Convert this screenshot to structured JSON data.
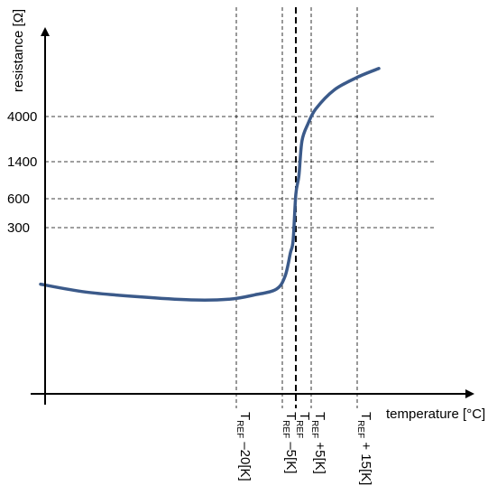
{
  "chart_data": {
    "type": "line",
    "title": "",
    "xlabel": "temperature [°C]",
    "ylabel": "resistance [Ω]",
    "y_ticks": [
      {
        "label": "300",
        "value": 300
      },
      {
        "label": "600",
        "value": 600
      },
      {
        "label": "1400",
        "value": 1400
      },
      {
        "label": "4000",
        "value": 4000
      }
    ],
    "x_ticks": [
      {
        "key": "m20",
        "main": "T",
        "sub": "REF",
        "suffix": " –20[K]",
        "offset": -20
      },
      {
        "key": "m5",
        "main": "T",
        "sub": "REF",
        "suffix": " –5[K]",
        "offset": -5
      },
      {
        "key": "ref",
        "main": "T",
        "sub": "REF",
        "suffix": "",
        "offset": 0
      },
      {
        "key": "p5",
        "main": "T",
        "sub": "REF",
        "suffix": " +5[K]",
        "offset": 5
      },
      {
        "key": "p15",
        "main": "T",
        "sub": "REF",
        "suffix": " + 15[K]",
        "offset": 15
      }
    ],
    "reference_line": {
      "offset": 0,
      "style": "dashed-bold"
    },
    "grid": "dashed lines at tick values",
    "series": [
      {
        "color": "#3b5a8a",
        "points": [
          {
            "x": -46,
            "y": 120
          },
          {
            "x": -40,
            "y": 95
          },
          {
            "x": -33,
            "y": 80
          },
          {
            "x": -26,
            "y": 70
          },
          {
            "x": -21,
            "y": 72
          },
          {
            "x": -14,
            "y": 86
          },
          {
            "x": -7,
            "y": 104
          },
          {
            "x": -4,
            "y": 145
          },
          {
            "x": -2,
            "y": 220
          },
          {
            "x": -1,
            "y": 260
          },
          {
            "x": 0,
            "y": 700
          },
          {
            "x": 1,
            "y": 1100
          },
          {
            "x": 2,
            "y": 2600
          },
          {
            "x": 4,
            "y": 3600
          },
          {
            "x": 6,
            "y": 5200
          },
          {
            "x": 10,
            "y": 8200
          },
          {
            "x": 15,
            "y": 10200
          },
          {
            "x": 22,
            "y": 11600
          }
        ]
      }
    ]
  }
}
